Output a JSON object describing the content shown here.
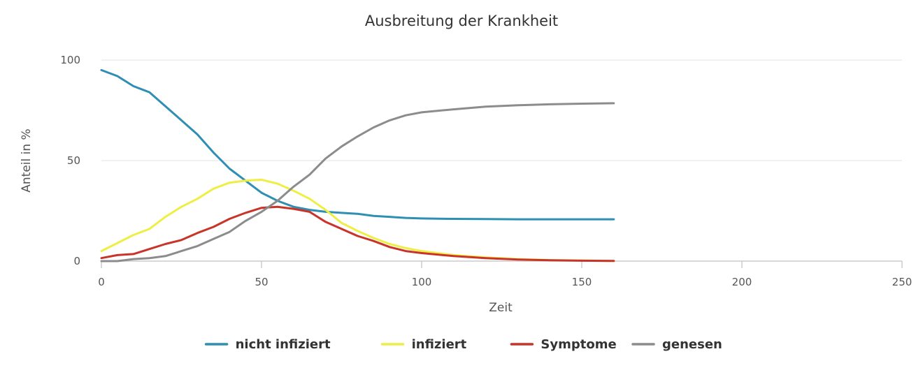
{
  "chart_data": {
    "type": "line",
    "title": "Ausbreitung der Krankheit",
    "xlabel": "Zeit",
    "ylabel": "Anteil in %",
    "xlim": [
      0,
      250
    ],
    "ylim": [
      0,
      100
    ],
    "x_ticks": [
      "0",
      "50",
      "100",
      "150",
      "200",
      "250"
    ],
    "y_ticks": [
      "0",
      "50",
      "100"
    ],
    "grid": "horizontal",
    "legend_position": "bottom",
    "series": [
      {
        "name": "nicht infiziert",
        "color": "#2e8fb2",
        "points": [
          [
            0,
            95
          ],
          [
            5,
            92
          ],
          [
            10,
            87
          ],
          [
            15,
            84
          ],
          [
            20,
            77
          ],
          [
            25,
            70
          ],
          [
            30,
            63
          ],
          [
            35,
            54
          ],
          [
            40,
            46
          ],
          [
            45,
            40
          ],
          [
            50,
            34
          ],
          [
            55,
            30
          ],
          [
            60,
            27
          ],
          [
            65,
            25.5
          ],
          [
            70,
            24.5
          ],
          [
            75,
            24
          ],
          [
            80,
            23.5
          ],
          [
            85,
            22.5
          ],
          [
            90,
            22
          ],
          [
            95,
            21.5
          ],
          [
            100,
            21.2
          ],
          [
            110,
            21
          ],
          [
            120,
            20.9
          ],
          [
            130,
            20.8
          ],
          [
            140,
            20.8
          ],
          [
            150,
            20.8
          ],
          [
            160,
            20.8
          ]
        ]
      },
      {
        "name": "infiziert",
        "color": "#eeee44",
        "points": [
          [
            0,
            5
          ],
          [
            5,
            9
          ],
          [
            10,
            13
          ],
          [
            15,
            16
          ],
          [
            20,
            22
          ],
          [
            25,
            27
          ],
          [
            30,
            31
          ],
          [
            35,
            36
          ],
          [
            40,
            39
          ],
          [
            45,
            40
          ],
          [
            50,
            40.5
          ],
          [
            55,
            38.5
          ],
          [
            60,
            35
          ],
          [
            65,
            31
          ],
          [
            70,
            25.5
          ],
          [
            75,
            19
          ],
          [
            80,
            15
          ],
          [
            85,
            11.5
          ],
          [
            90,
            8.5
          ],
          [
            95,
            6.5
          ],
          [
            100,
            5
          ],
          [
            110,
            3
          ],
          [
            120,
            1.8
          ],
          [
            130,
            1
          ],
          [
            140,
            0.5
          ],
          [
            150,
            0.3
          ],
          [
            160,
            0.1
          ]
        ]
      },
      {
        "name": "Symptome",
        "color": "#c8342a",
        "points": [
          [
            0,
            1.5
          ],
          [
            5,
            3
          ],
          [
            10,
            3.5
          ],
          [
            15,
            6
          ],
          [
            20,
            8.5
          ],
          [
            25,
            10.5
          ],
          [
            30,
            14
          ],
          [
            35,
            17
          ],
          [
            40,
            21
          ],
          [
            45,
            24
          ],
          [
            50,
            26.5
          ],
          [
            55,
            27
          ],
          [
            60,
            26
          ],
          [
            65,
            24.5
          ],
          [
            70,
            19.5
          ],
          [
            75,
            16
          ],
          [
            80,
            12.5
          ],
          [
            85,
            10
          ],
          [
            90,
            7
          ],
          [
            95,
            5
          ],
          [
            100,
            4
          ],
          [
            110,
            2.5
          ],
          [
            120,
            1.5
          ],
          [
            130,
            0.8
          ],
          [
            140,
            0.4
          ],
          [
            150,
            0.2
          ],
          [
            160,
            0.1
          ]
        ]
      },
      {
        "name": "genesen",
        "color": "#8c8c8c",
        "points": [
          [
            0,
            0
          ],
          [
            5,
            0
          ],
          [
            10,
            1
          ],
          [
            15,
            1.5
          ],
          [
            20,
            2.5
          ],
          [
            25,
            5
          ],
          [
            30,
            7.5
          ],
          [
            35,
            11
          ],
          [
            40,
            14.5
          ],
          [
            45,
            20
          ],
          [
            50,
            24.5
          ],
          [
            55,
            30
          ],
          [
            60,
            37
          ],
          [
            65,
            43
          ],
          [
            70,
            51
          ],
          [
            75,
            57
          ],
          [
            80,
            62
          ],
          [
            85,
            66.5
          ],
          [
            90,
            70
          ],
          [
            95,
            72.5
          ],
          [
            100,
            74
          ],
          [
            110,
            75.5
          ],
          [
            120,
            76.8
          ],
          [
            130,
            77.5
          ],
          [
            140,
            78
          ],
          [
            150,
            78.3
          ],
          [
            160,
            78.5
          ]
        ]
      }
    ]
  }
}
